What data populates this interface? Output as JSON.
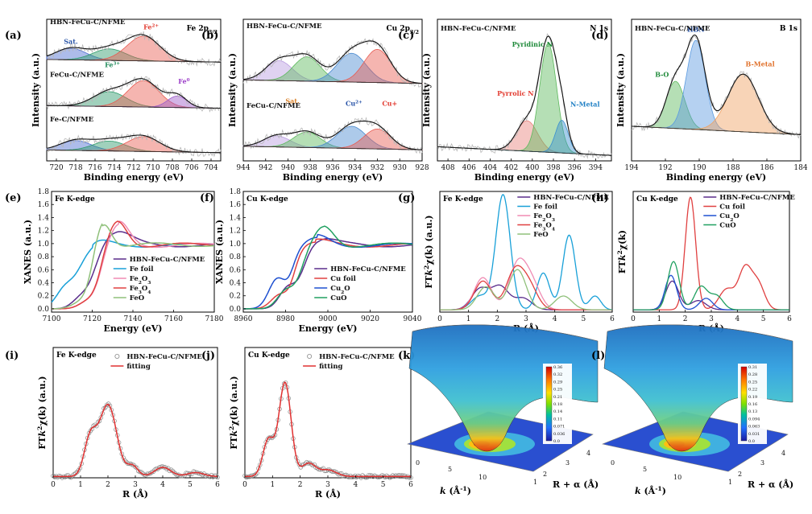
{
  "chart_data": [
    {
      "id": "a",
      "label": "(a)",
      "type": "line",
      "title": "Fe 2p3/2",
      "xlabel": "Binding energy (eV)",
      "ylabel": "Intensity (a.u.)",
      "xlim": [
        721,
        703
      ],
      "ylim": [
        0,
        4.3
      ],
      "ticks": [
        720,
        718,
        716,
        714,
        712,
        710,
        708,
        706,
        704
      ],
      "stacks": [
        {
          "name": "HBN-FeCu-C/NFME",
          "label_color": "#4b2e83",
          "base": 3.0,
          "peaks": [
            [
              718.5,
              0.35,
              1.6,
              "#4a6bd0"
            ],
            [
              714.5,
              0.35,
              1.7,
              "#2d9a6a"
            ],
            [
              711.0,
              0.75,
              1.7,
              "#e85a50"
            ]
          ],
          "notes": [
            {
              "text": "Sat.",
              "x": 718.5,
              "y": 0.55,
              "color": "#2a55a8"
            },
            {
              "text": "Fe2+",
              "x": 710.2,
              "y": 1.0,
              "color": "#e23b30"
            },
            {
              "text": "Fe3+",
              "x": 714.2,
              "y": -0.15,
              "color": "#1f8a5a"
            }
          ]
        },
        {
          "name": "FeCu-C/NFME",
          "label_color": "#2a55a8",
          "base": 1.6,
          "peaks": [
            [
              714.5,
              0.45,
              1.7,
              "#2d9a6a"
            ],
            [
              711.0,
              0.8,
              1.6,
              "#e85a50"
            ],
            [
              707.5,
              0.35,
              1.0,
              "#9b59c8"
            ]
          ],
          "notes": [
            {
              "text": "Fe0",
              "x": 706.8,
              "y": 0.75,
              "color": "#9b3cc8"
            }
          ]
        },
        {
          "name": "Fe-C/NFME",
          "label_color": "#1f8a5a",
          "base": 0.25,
          "peaks": [
            [
              718.0,
              0.3,
              1.6,
              "#4a6bd0"
            ],
            [
              714.5,
              0.3,
              1.7,
              "#2d9a6a"
            ],
            [
              711.0,
              0.45,
              1.7,
              "#e85a50"
            ]
          ],
          "notes": []
        }
      ]
    },
    {
      "id": "b",
      "label": "(b)",
      "type": "line",
      "title": "Cu 2p3/2",
      "xlabel": "Binding energy (eV)",
      "ylabel": "Intensity (a.u.)",
      "xlim": [
        944,
        928
      ],
      "ylim": [
        0,
        3.2
      ],
      "ticks": [
        944,
        942,
        940,
        938,
        936,
        934,
        932,
        930,
        928
      ],
      "stacks": [
        {
          "name": "HBN-FeCu-C/NFME",
          "label_color": "#4b2e83",
          "base": 1.75,
          "peaks": [
            [
              940.8,
              0.45,
              1.2,
              "#b89be0"
            ],
            [
              938.3,
              0.55,
              1.2,
              "#5cb85c"
            ],
            [
              934.3,
              0.65,
              1.3,
              "#4a8ad0"
            ],
            [
              932.0,
              0.75,
              1.2,
              "#e85a50"
            ]
          ],
          "notes": [
            {
              "text": "Sat.",
              "x": 939.6,
              "y": -0.45,
              "color": "#d9822b"
            },
            {
              "text": "Cu2+",
              "x": 934.1,
              "y": -0.5,
              "color": "#2a55a8"
            },
            {
              "text": "Cu+",
              "x": 930.9,
              "y": -0.5,
              "color": "#e23b30"
            }
          ]
        },
        {
          "name": "FeCu-C/NFME",
          "label_color": "#2a55a8",
          "base": 0.25,
          "peaks": [
            [
              941.0,
              0.25,
              1.2,
              "#b89be0"
            ],
            [
              938.3,
              0.35,
              1.2,
              "#5cb85c"
            ],
            [
              934.3,
              0.5,
              1.3,
              "#4a8ad0"
            ],
            [
              932.0,
              0.45,
              1.2,
              "#e85a50"
            ]
          ],
          "notes": []
        }
      ]
    },
    {
      "id": "c",
      "label": "(c)",
      "type": "line",
      "title": "N 1s",
      "sample": "HBN-FeCu-C/NFME",
      "xlabel": "Binding energy (eV)",
      "ylabel": "Intensity (a.u.)",
      "xlim": [
        409,
        392.5
      ],
      "ylim": [
        0,
        1.3
      ],
      "ticks": [
        408,
        406,
        404,
        402,
        400,
        398,
        396,
        394
      ],
      "stacks": [
        {
          "name": "",
          "label_color": "#4b2e83",
          "base": 0.05,
          "peaks": [
            [
              400.5,
              0.28,
              1.0,
              "#e8807a"
            ],
            [
              398.5,
              1.0,
              0.8,
              "#5cb85c"
            ],
            [
              397.2,
              0.3,
              0.6,
              "#3a90d0"
            ]
          ],
          "notes": [
            {
              "text": "Pyridinic N",
              "x": 400.0,
              "y": 1.0,
              "color": "#1f8a3a"
            },
            {
              "text": "Pyrrolic N",
              "x": 401.6,
              "y": 0.55,
              "color": "#e23b30"
            },
            {
              "text": "N-Metal",
              "x": 395.0,
              "y": 0.45,
              "color": "#1e7fc4"
            }
          ]
        }
      ]
    },
    {
      "id": "d",
      "label": "(d)",
      "type": "line",
      "title": "B 1s",
      "sample": "HBN-FeCu-C/NFME",
      "xlabel": "Binding energy (eV)",
      "ylabel": "Intensity (a.u.)",
      "xlim": [
        194,
        184
      ],
      "ylim": [
        0,
        1.35
      ],
      "ticks": [
        194,
        192,
        190,
        188,
        186,
        184
      ],
      "stacks": [
        {
          "name": "",
          "label_color": "#4b2e83",
          "base": 0.25,
          "peaks": [
            [
              191.4,
              0.45,
              0.55,
              "#5cb85c"
            ],
            [
              190.2,
              0.85,
              0.55,
              "#5a9ae0"
            ],
            [
              187.4,
              0.55,
              0.9,
              "#f0a060"
            ]
          ],
          "notes": [
            {
              "text": "HBN",
              "x": 190.2,
              "y": 0.98,
              "color": "#2a55a8"
            },
            {
              "text": "B-O",
              "x": 192.2,
              "y": 0.55,
              "color": "#1f8a3a"
            },
            {
              "text": "B-Metal",
              "x": 186.4,
              "y": 0.65,
              "color": "#e0702a"
            }
          ]
        }
      ]
    },
    {
      "id": "e",
      "label": "(e)",
      "type": "line",
      "title": "Fe K-edge",
      "xlabel": "Energy (eV)",
      "ylabel": "XANES (a.u.)",
      "xlim": [
        7100,
        7180
      ],
      "ylim": [
        -0.05,
        1.8
      ],
      "xticks": [
        7100,
        7120,
        7140,
        7160,
        7180
      ],
      "yticks": [
        0.0,
        0.2,
        0.4,
        0.6,
        0.8,
        1.0,
        1.2,
        1.4,
        1.6,
        1.8
      ],
      "series": [
        {
          "name": "HBN-FeCu-C/NFME",
          "color": "#5a2d8c",
          "e0": 7121,
          "w": 3.0,
          "peak": 7131,
          "ph": 0.22,
          "sw": 7,
          "pre": 0.12
        },
        {
          "name": "Fe foil",
          "color": "#18a0d8",
          "e0": 7113,
          "w": 4.0,
          "peak": 7120,
          "ph": 0.1,
          "sw": 7,
          "pre": 0.2
        },
        {
          "name": "Fe2O3",
          "color": "#f08cb4",
          "e0": 7124,
          "w": 2.5,
          "peak": 7133,
          "ph": 0.35,
          "sw": 5,
          "pre": 0.08
        },
        {
          "name": "Fe3O4",
          "color": "#e04040",
          "e0": 7124,
          "w": 2.5,
          "peak": 7132,
          "ph": 0.4,
          "sw": 5,
          "pre": 0.08
        },
        {
          "name": "FeO",
          "color": "#8fc07a",
          "e0": 7120,
          "w": 2.5,
          "peak": 7125,
          "ph": 0.45,
          "sw": 4,
          "pre": 0.06
        }
      ]
    },
    {
      "id": "f",
      "label": "(f)",
      "type": "line",
      "title": "Cu K-edge",
      "xlabel": "Energy (eV)",
      "ylabel": "XANES (a.u.)",
      "xlim": [
        8960,
        9040
      ],
      "ylim": [
        -0.05,
        1.8
      ],
      "xticks": [
        8960,
        8980,
        9000,
        9020,
        9040
      ],
      "yticks": [
        0.0,
        0.2,
        0.4,
        0.6,
        0.8,
        1.0,
        1.2,
        1.4,
        1.6,
        1.8
      ],
      "series": [
        {
          "name": "HBN-FeCu-C/NFME",
          "color": "#5a2d8c",
          "e0": 8988,
          "w": 2.5,
          "peak": 8996,
          "ph": 0.1,
          "sw": 6,
          "pre": 0.3
        },
        {
          "name": "Cu foil",
          "color": "#e04040",
          "e0": 8984,
          "w": 2.0,
          "peak": 8994,
          "ph": 0.05,
          "sw": 6,
          "pre": 0.2
        },
        {
          "name": "Cu2O",
          "color": "#1e50d0",
          "e0": 8983,
          "w": 2.0,
          "peak": 8995,
          "ph": 0.12,
          "sw": 6,
          "pre": 0.45
        },
        {
          "name": "CuO",
          "color": "#20a060",
          "e0": 8987,
          "w": 2.5,
          "peak": 8998,
          "ph": 0.3,
          "sw": 5,
          "pre": 0.25
        }
      ]
    },
    {
      "id": "g",
      "label": "(g)",
      "type": "line",
      "title": "Fe K-edge",
      "xlabel": "R (Å)",
      "ylabel": "FTk2χ(k) (a.u.)",
      "xlim": [
        0,
        6
      ],
      "ylim": [
        0,
        1.05
      ],
      "xticks": [
        0,
        1,
        2,
        3,
        4,
        5,
        6
      ],
      "series": [
        {
          "name": "HBN-FeCu-C/NFME",
          "color": "#5a2d8c",
          "peaks": [
            [
              1.4,
              0.18,
              0.3
            ],
            [
              2.1,
              0.2,
              0.3
            ],
            [
              2.9,
              0.1,
              0.3
            ]
          ]
        },
        {
          "name": "Fe foil",
          "color": "#18a0d8",
          "peaks": [
            [
              1.4,
              0.12,
              0.3
            ],
            [
              2.2,
              1.0,
              0.25
            ],
            [
              3.6,
              0.32,
              0.22
            ],
            [
              4.5,
              0.65,
              0.22
            ],
            [
              5.4,
              0.12,
              0.2
            ]
          ]
        },
        {
          "name": "Fe2O3",
          "color": "#f08cb4",
          "peaks": [
            [
              1.5,
              0.28,
              0.3
            ],
            [
              2.7,
              0.38,
              0.3
            ],
            [
              3.2,
              0.22,
              0.3
            ]
          ]
        },
        {
          "name": "Fe3O4",
          "color": "#e04040",
          "peaks": [
            [
              1.5,
              0.25,
              0.3
            ],
            [
              2.6,
              0.32,
              0.3
            ],
            [
              3.1,
              0.2,
              0.3
            ]
          ]
        },
        {
          "name": "FeO",
          "color": "#8fc07a",
          "peaks": [
            [
              1.6,
              0.2,
              0.3
            ],
            [
              2.7,
              0.35,
              0.3
            ],
            [
              4.3,
              0.12,
              0.3
            ]
          ]
        }
      ]
    },
    {
      "id": "h",
      "label": "(h)",
      "type": "line",
      "title": "Cu K-edge",
      "xlabel": "R (Å)",
      "ylabel": "FTk2χ(k)",
      "xlim": [
        0,
        6
      ],
      "ylim": [
        0,
        1.05
      ],
      "xticks": [
        0,
        1,
        2,
        3,
        4,
        5,
        6
      ],
      "series": [
        {
          "name": "HBN-FeCu-C/NFME",
          "color": "#5a2d8c",
          "peaks": [
            [
              1.5,
              0.25,
              0.25
            ],
            [
              2.5,
              0.08,
              0.3
            ]
          ]
        },
        {
          "name": "Cu foil",
          "color": "#e04040",
          "peaks": [
            [
              2.2,
              0.98,
              0.2
            ],
            [
              3.6,
              0.18,
              0.3
            ],
            [
              4.3,
              0.35,
              0.25
            ],
            [
              4.8,
              0.22,
              0.25
            ]
          ]
        },
        {
          "name": "Cu2O",
          "color": "#1e50d0",
          "peaks": [
            [
              1.45,
              0.3,
              0.22
            ],
            [
              2.8,
              0.1,
              0.25
            ]
          ]
        },
        {
          "name": "CuO",
          "color": "#20a060",
          "peaks": [
            [
              1.55,
              0.42,
              0.22
            ],
            [
              2.6,
              0.2,
              0.25
            ],
            [
              3.2,
              0.12,
              0.25
            ]
          ]
        }
      ]
    },
    {
      "id": "i",
      "label": "(i)",
      "type": "scatter",
      "title": "Fe K-edge",
      "xlabel": "R (Å)",
      "ylabel": "FTk2χ(k) (a.u.)",
      "xlim": [
        0,
        6
      ],
      "ylim": [
        0,
        1.0
      ],
      "xticks": [
        0,
        1,
        2,
        3,
        4,
        5,
        6
      ],
      "legend": [
        "HBN-FeCu-C/NFME",
        "fitting"
      ],
      "peaks": [
        [
          1.35,
          0.28,
          0.22
        ],
        [
          2.0,
          0.55,
          0.32
        ],
        [
          2.9,
          0.08,
          0.2
        ],
        [
          4.0,
          0.07,
          0.3
        ],
        [
          5.2,
          0.03,
          0.3
        ]
      ]
    },
    {
      "id": "j",
      "label": "(j)",
      "type": "scatter",
      "title": "Cu K-edge",
      "xlabel": "R (Å)",
      "ylabel": "FTk2χ(k) (a.u.)",
      "xlim": [
        0,
        6
      ],
      "ylim": [
        0,
        1.0
      ],
      "xticks": [
        0,
        1,
        2,
        3,
        4,
        5,
        6
      ],
      "legend": [
        "HBN-FeCu-C/NFME",
        "fitting"
      ],
      "peaks": [
        [
          0.85,
          0.28,
          0.2
        ],
        [
          1.45,
          0.72,
          0.22
        ],
        [
          2.3,
          0.1,
          0.25
        ],
        [
          3.0,
          0.05,
          0.3
        ]
      ]
    },
    {
      "id": "k",
      "label": "(k)",
      "type": "heatmap",
      "colorbar_ticks": [
        "0.36",
        "0.32",
        "0.29",
        "0.25",
        "0.21",
        "0.18",
        "0.14",
        "0.11",
        "0.071",
        "0.036",
        "0.0"
      ],
      "k_label": "k (Å-1)",
      "r_label": "R + α (Å)",
      "k_ticks": [
        "0",
        "5",
        "10"
      ],
      "r_ticks": [
        "1",
        "2",
        "3",
        "4"
      ]
    },
    {
      "id": "l",
      "label": "(l)",
      "type": "heatmap",
      "colorbar_ticks": [
        "0.31",
        "0.28",
        "0.25",
        "0.22",
        "0.19",
        "0.16",
        "0.13",
        "0.094",
        "0.063",
        "0.031",
        "0.0"
      ],
      "k_label": "k (Å-1)",
      "r_label": "R + α (Å)",
      "k_ticks": [
        "0",
        "5",
        "10"
      ],
      "r_ticks": [
        "1",
        "2",
        "3",
        "4"
      ]
    }
  ]
}
